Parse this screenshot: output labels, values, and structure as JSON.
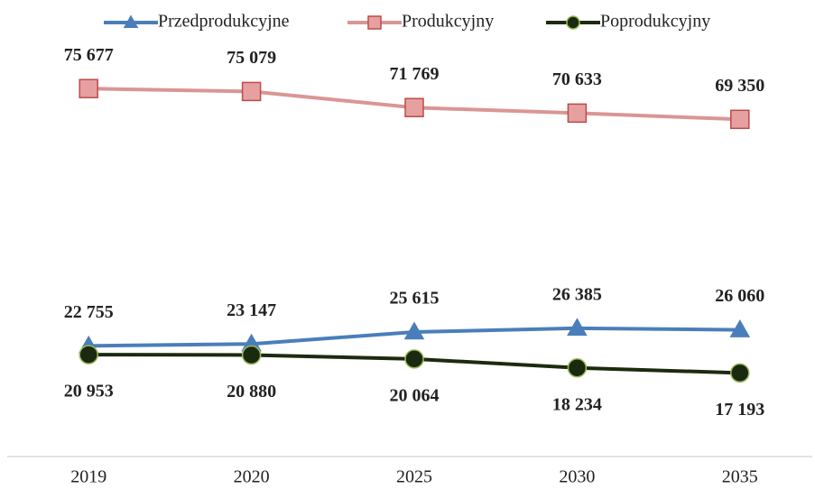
{
  "chart_data": {
    "type": "line",
    "categories": [
      "2019",
      "2020",
      "2025",
      "2030",
      "2035"
    ],
    "ylim": [
      0,
      90000
    ],
    "series": [
      {
        "name": "Przedprodukcyjne",
        "color": "#4a7ebb",
        "marker": "triangle",
        "label_position": "above",
        "values": [
          22755,
          23147,
          25615,
          26385,
          26060
        ],
        "value_labels": [
          "22 755",
          "23 147",
          "25 615",
          "26 385",
          "26 060"
        ]
      },
      {
        "name": "Produkcyjny",
        "color": "#d99694",
        "marker": "square",
        "marker_fill": "#e6a0a0",
        "marker_stroke": "#be4b48",
        "label_position": "above",
        "values": [
          75677,
          75079,
          71769,
          70633,
          69350
        ],
        "value_labels": [
          "75 677",
          "75 079",
          "71 769",
          "70 633",
          "69 350"
        ]
      },
      {
        "name": "Poprodukcyjny",
        "color": "#1c2a0e",
        "marker": "circle",
        "marker_fill": "#1a2a10",
        "marker_stroke": "#9bbb59",
        "label_position": "below",
        "values": [
          20953,
          20880,
          20064,
          18234,
          17193
        ],
        "value_labels": [
          "20 953",
          "20 880",
          "20 064",
          "18 234",
          "17 193"
        ]
      }
    ]
  }
}
